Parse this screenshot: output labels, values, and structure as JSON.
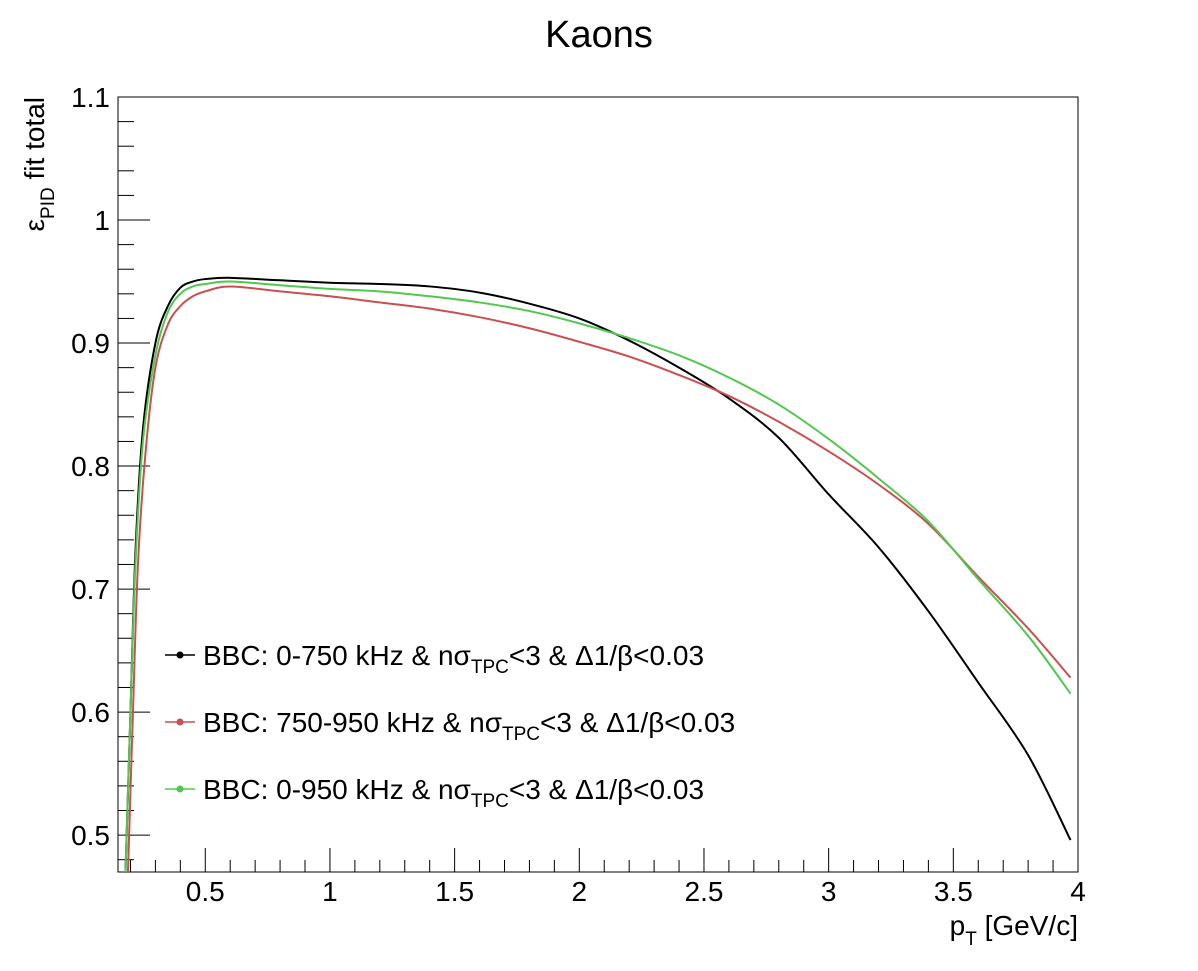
{
  "chart_data": {
    "type": "line",
    "title": "Kaons",
    "xlabel": {
      "main": "p",
      "sub": "T",
      "rest": " [GeV/c]"
    },
    "ylabel": {
      "main": "ε",
      "sub": "PID",
      "rest": " fit total"
    },
    "xlim": [
      0.15,
      4.0
    ],
    "ylim": [
      0.47,
      1.1
    ],
    "x_ticks": [
      0.5,
      1,
      1.5,
      2,
      2.5,
      3,
      3.5,
      4
    ],
    "x_tick_labels": [
      "0.5",
      "1",
      "1.5",
      "2",
      "2.5",
      "3",
      "3.5",
      "4"
    ],
    "y_ticks": [
      0.5,
      0.6,
      0.7,
      0.8,
      0.9,
      1.0,
      1.1
    ],
    "y_tick_labels": [
      "0.5",
      "0.6",
      "0.7",
      "0.8",
      "0.9",
      "1",
      "1.1"
    ],
    "grid": false,
    "legend_position": "bottom-left",
    "series": [
      {
        "name": "BBC: 0-750 kHz & nσTPC<3 & Δ1/β<0.03",
        "legend": {
          "pre": "BBC: 0-750 kHz & nσ",
          "sub": "TPC",
          "post": "<3 & Δ1/β<0.03"
        },
        "color": "#000000",
        "points": [
          [
            0.18,
            0.47
          ],
          [
            0.2,
            0.6
          ],
          [
            0.22,
            0.73
          ],
          [
            0.25,
            0.83
          ],
          [
            0.3,
            0.9
          ],
          [
            0.35,
            0.93
          ],
          [
            0.4,
            0.945
          ],
          [
            0.45,
            0.95
          ],
          [
            0.5,
            0.952
          ],
          [
            0.6,
            0.953
          ],
          [
            0.8,
            0.951
          ],
          [
            1.0,
            0.949
          ],
          [
            1.2,
            0.948
          ],
          [
            1.4,
            0.946
          ],
          [
            1.6,
            0.941
          ],
          [
            1.8,
            0.932
          ],
          [
            2.0,
            0.92
          ],
          [
            2.2,
            0.902
          ],
          [
            2.4,
            0.88
          ],
          [
            2.6,
            0.855
          ],
          [
            2.8,
            0.823
          ],
          [
            3.0,
            0.777
          ],
          [
            3.2,
            0.734
          ],
          [
            3.4,
            0.682
          ],
          [
            3.6,
            0.624
          ],
          [
            3.8,
            0.565
          ],
          [
            3.97,
            0.496
          ]
        ]
      },
      {
        "name": "BBC: 750-950 kHz & nσTPC<3 & Δ1/β<0.03",
        "legend": {
          "pre": "BBC: 750-950 kHz & nσ",
          "sub": "TPC",
          "post": "<3 & Δ1/β<0.03"
        },
        "color": "#c95050",
        "points": [
          [
            0.19,
            0.47
          ],
          [
            0.21,
            0.6
          ],
          [
            0.23,
            0.72
          ],
          [
            0.26,
            0.81
          ],
          [
            0.3,
            0.88
          ],
          [
            0.35,
            0.915
          ],
          [
            0.4,
            0.93
          ],
          [
            0.45,
            0.938
          ],
          [
            0.5,
            0.942
          ],
          [
            0.6,
            0.946
          ],
          [
            0.8,
            0.942
          ],
          [
            1.0,
            0.938
          ],
          [
            1.2,
            0.933
          ],
          [
            1.4,
            0.928
          ],
          [
            1.6,
            0.921
          ],
          [
            1.8,
            0.912
          ],
          [
            2.0,
            0.901
          ],
          [
            2.2,
            0.889
          ],
          [
            2.4,
            0.874
          ],
          [
            2.6,
            0.857
          ],
          [
            2.8,
            0.836
          ],
          [
            3.0,
            0.812
          ],
          [
            3.2,
            0.785
          ],
          [
            3.4,
            0.753
          ],
          [
            3.6,
            0.71
          ],
          [
            3.8,
            0.668
          ],
          [
            3.97,
            0.628
          ]
        ]
      },
      {
        "name": "BBC: 0-950 kHz & nσTPC<3 & Δ1/β<0.03",
        "legend": {
          "pre": "BBC: 0-950 kHz & nσ",
          "sub": "TPC",
          "post": "<3 & Δ1/β<0.03"
        },
        "color": "#50c850",
        "points": [
          [
            0.18,
            0.47
          ],
          [
            0.2,
            0.6
          ],
          [
            0.22,
            0.72
          ],
          [
            0.25,
            0.82
          ],
          [
            0.3,
            0.89
          ],
          [
            0.35,
            0.925
          ],
          [
            0.4,
            0.94
          ],
          [
            0.45,
            0.946
          ],
          [
            0.5,
            0.948
          ],
          [
            0.6,
            0.95
          ],
          [
            0.8,
            0.947
          ],
          [
            1.0,
            0.944
          ],
          [
            1.2,
            0.942
          ],
          [
            1.4,
            0.938
          ],
          [
            1.6,
            0.933
          ],
          [
            1.8,
            0.926
          ],
          [
            2.0,
            0.916
          ],
          [
            2.2,
            0.904
          ],
          [
            2.4,
            0.89
          ],
          [
            2.6,
            0.872
          ],
          [
            2.8,
            0.85
          ],
          [
            3.0,
            0.822
          ],
          [
            3.2,
            0.79
          ],
          [
            3.4,
            0.755
          ],
          [
            3.6,
            0.708
          ],
          [
            3.8,
            0.662
          ],
          [
            3.97,
            0.615
          ]
        ]
      }
    ]
  }
}
